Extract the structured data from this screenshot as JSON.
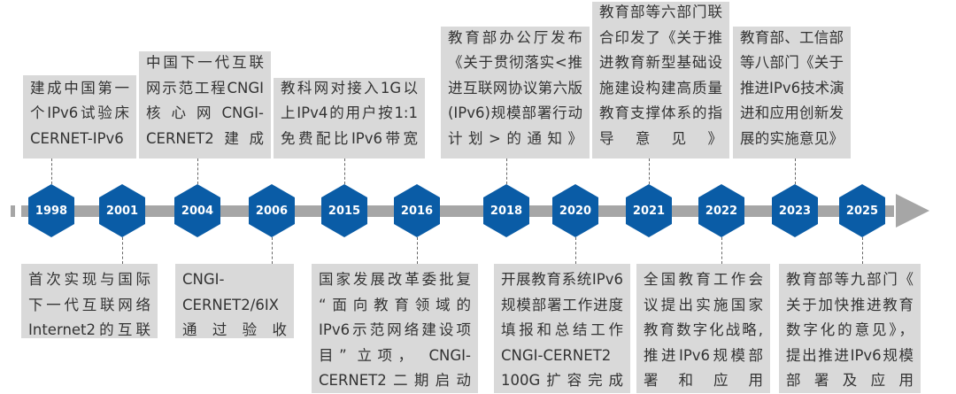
{
  "colors": {
    "hexagon": "#0a5ca6",
    "bar": "#a6a6a6",
    "box": "#d9d9d9",
    "text": "#333333"
  },
  "years": [
    "1998",
    "2001",
    "2004",
    "2006",
    "2015",
    "2016",
    "2018",
    "2020",
    "2021",
    "2022",
    "2023",
    "2025"
  ],
  "events": [
    {
      "year": "1998",
      "lines": [
        "建成中国第一",
        "个IPv6试验床",
        "CERNET-IPv6"
      ]
    },
    {
      "year": "2001",
      "lines": [
        "首次实现与国际",
        "下一代互联网络",
        "Internet2的互联"
      ]
    },
    {
      "year": "2004",
      "lines": [
        "中国下一代互联",
        "网示范工程CNGI",
        "核 心 网 CNGI-",
        "CERNET2建成"
      ]
    },
    {
      "year": "2006",
      "lines": [
        "CNGI-",
        "CERNET2/6IX",
        "通过验收"
      ]
    },
    {
      "year": "2015",
      "lines": [
        "教科网对接入1G以",
        "上IPv4的用户按1:1",
        "免费配比IPv6带宽"
      ]
    },
    {
      "year": "2016",
      "lines": [
        "国家发展改革委批复",
        "“面向教育领域的",
        "IPv6示范网络建设项",
        "目” 立项， CNGI-",
        "CERNET2二期启动"
      ]
    },
    {
      "year": "2018",
      "lines": [
        "教育部办公厅发布",
        "《关于贯彻落实<推",
        "进互联网协议第六版",
        "(IPv6)规模部署行动",
        "计划>的通知》"
      ]
    },
    {
      "year": "2020",
      "lines": [
        "开展教育系统IPv6",
        "规模部署工作进度",
        "填报和总结工作",
        "CNGI-CERNET2",
        "100G扩容完成"
      ]
    },
    {
      "year": "2021",
      "lines": [
        "教育部等六部门联",
        "合印发了《关于推",
        "进教育新型基础设",
        "施建设构建高质量",
        "教育支撑体系的指",
        "导意见》"
      ]
    },
    {
      "year": "2022",
      "lines": [
        "全国教育工作会",
        "议提出实施国家",
        "教育数字化战略,",
        "推进IPv6规模部",
        "署和应用"
      ]
    },
    {
      "year": "2023",
      "lines": [
        "教育部、工信部",
        "等八部门《关于",
        "推进IPv6技术演",
        "进和应用创新发",
        "展的实施意见》"
      ]
    },
    {
      "year": "2025",
      "lines": [
        "教育部等九部门《",
        "关于加快推进教育",
        "数字化的意见》，",
        "提出推进IPv6规模",
        "部署及应用"
      ]
    }
  ]
}
